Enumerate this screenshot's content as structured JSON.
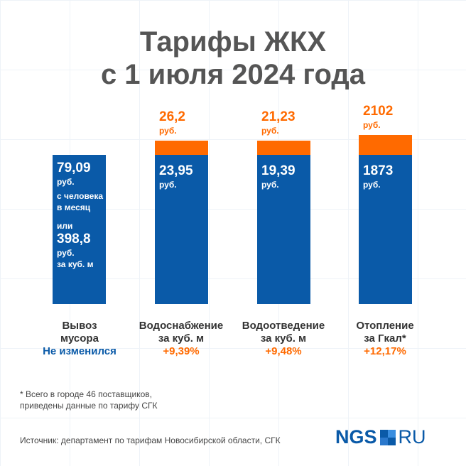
{
  "chart_data": {
    "type": "bar",
    "title": "Тарифы ЖКХ с 1 июля 2024 года",
    "title_lines": [
      "Тарифы ЖКХ",
      "с 1 июля 2024 года"
    ],
    "unit": "руб.",
    "categories": [
      {
        "name": "Вывоз мусора",
        "lines": [
          "Вывоз",
          "мусора"
        ],
        "change": "Не изменился",
        "old": "79,09",
        "new": null,
        "extra": [
          "с человека",
          "в месяц"
        ],
        "or": "или",
        "alt": "398,8",
        "alt_extra": "за куб. м"
      },
      {
        "name": "Водоснабжение за куб. м",
        "lines": [
          "Водоснабжение",
          "за куб. м"
        ],
        "change": "+9,39%",
        "old": "23,95",
        "new": "26,2"
      },
      {
        "name": "Водоотведение за куб. м",
        "lines": [
          "Водоотведение",
          "за куб. м"
        ],
        "change": "+9,48%",
        "old": "19,39",
        "new": "21,23"
      },
      {
        "name": "Отопление за Гкал*",
        "lines": [
          "Отопление",
          "за Гкал*"
        ],
        "change": "+12,17%",
        "old": "1873",
        "new": "2102"
      }
    ],
    "series": [
      {
        "name": "old",
        "values": [
          79.09,
          23.95,
          19.39,
          1873
        ]
      },
      {
        "name": "new",
        "values": [
          79.09,
          26.2,
          21.23,
          2102
        ]
      }
    ],
    "colors": {
      "old": "#0a5aa8",
      "increase": "#ff6a00"
    }
  },
  "footnote": [
    "* Всего в городе 46 поставщиков,",
    "приведены данные по тарифу СГК"
  ],
  "source": "Источник: департамент по тарифам Новосибирской области, СГК",
  "logo": {
    "left": "NGS",
    "right": "RU"
  }
}
